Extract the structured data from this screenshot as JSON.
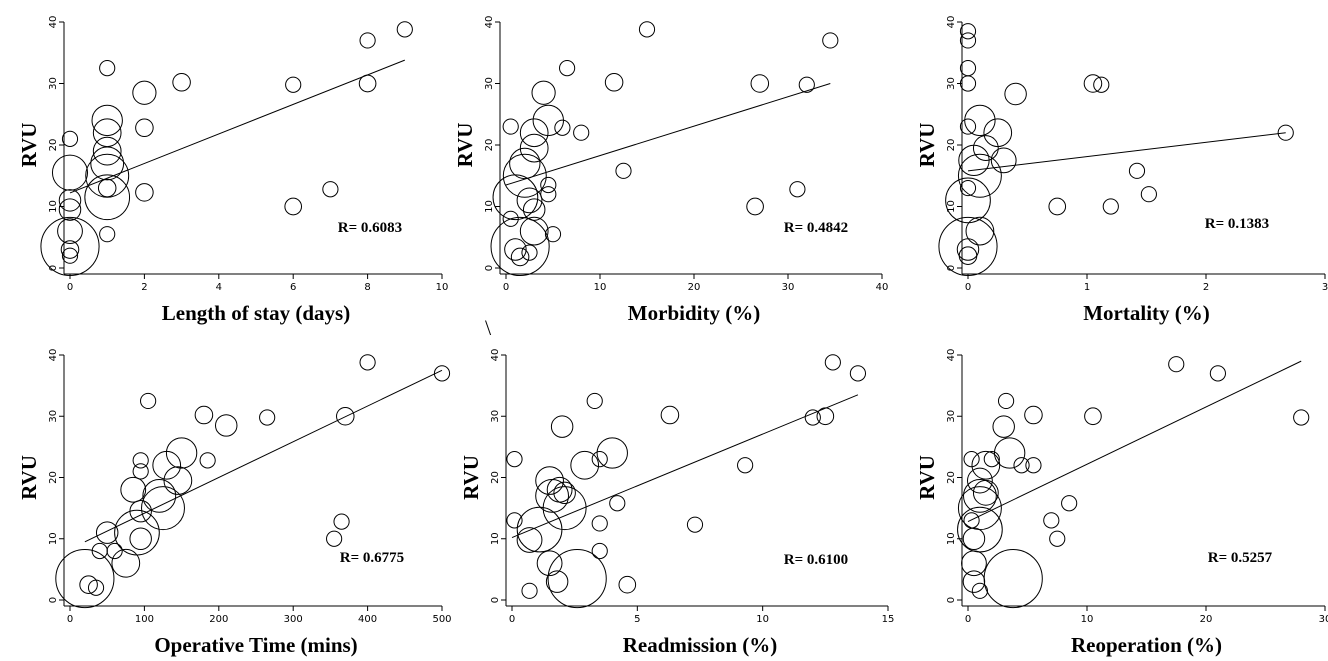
{
  "stray_mark": "\\",
  "chart_data": [
    {
      "type": "scatter",
      "xlabel": "Length of stay (days)",
      "ylabel": "RVU",
      "r_label": "R= 0.6083",
      "xlim": [
        0,
        10
      ],
      "ylim": [
        0,
        40
      ],
      "xticks": [
        0,
        2,
        4,
        6,
        8,
        10
      ],
      "yticks": [
        0,
        10,
        20,
        30,
        40
      ],
      "fit_line": [
        [
          0,
          12.2
        ],
        [
          9,
          33.8
        ]
      ],
      "points": [
        {
          "x": 0,
          "y": 3.5,
          "weight": 22
        },
        {
          "x": 0,
          "y": 15.5,
          "weight": 8
        },
        {
          "x": 0,
          "y": 6,
          "weight": 4
        },
        {
          "x": 0,
          "y": 11,
          "weight": 3
        },
        {
          "x": 0,
          "y": 9.5,
          "weight": 3
        },
        {
          "x": 0,
          "y": 21,
          "weight": 1.5
        },
        {
          "x": 0,
          "y": 3,
          "weight": 2
        },
        {
          "x": 0,
          "y": 2,
          "weight": 1.5
        },
        {
          "x": 1,
          "y": 11.5,
          "weight": 13
        },
        {
          "x": 1,
          "y": 15,
          "weight": 12
        },
        {
          "x": 1,
          "y": 17,
          "weight": 7
        },
        {
          "x": 1,
          "y": 19,
          "weight": 5
        },
        {
          "x": 1,
          "y": 22,
          "weight": 5
        },
        {
          "x": 1,
          "y": 24,
          "weight": 6
        },
        {
          "x": 1,
          "y": 13,
          "weight": 2
        },
        {
          "x": 1,
          "y": 32.5,
          "weight": 1.5
        },
        {
          "x": 1,
          "y": 5.5,
          "weight": 1.5
        },
        {
          "x": 2,
          "y": 28.5,
          "weight": 3.5
        },
        {
          "x": 2,
          "y": 22.8,
          "weight": 2
        },
        {
          "x": 2,
          "y": 12.3,
          "weight": 2
        },
        {
          "x": 3,
          "y": 30.2,
          "weight": 2
        },
        {
          "x": 6,
          "y": 29.8,
          "weight": 1.5
        },
        {
          "x": 6,
          "y": 10,
          "weight": 1.8
        },
        {
          "x": 7,
          "y": 12.8,
          "weight": 1.5
        },
        {
          "x": 8,
          "y": 37,
          "weight": 1.5
        },
        {
          "x": 8,
          "y": 30,
          "weight": 1.8
        },
        {
          "x": 9,
          "y": 38.8,
          "weight": 1.5
        }
      ]
    },
    {
      "type": "scatter",
      "xlabel": "Morbidity (%)",
      "ylabel": "RVU",
      "r_label": "R= 0.4842",
      "xlim": [
        0,
        40
      ],
      "ylim": [
        0,
        40
      ],
      "xticks": [
        0,
        10,
        20,
        30,
        40
      ],
      "yticks": [
        0,
        10,
        20,
        30,
        40
      ],
      "fit_line": [
        [
          0,
          13.5
        ],
        [
          34.5,
          30
        ]
      ],
      "points": [
        {
          "x": 1.5,
          "y": 3.5,
          "weight": 22
        },
        {
          "x": 1,
          "y": 11.5,
          "weight": 13
        },
        {
          "x": 2,
          "y": 15,
          "weight": 12
        },
        {
          "x": 2,
          "y": 17,
          "weight": 6
        },
        {
          "x": 3,
          "y": 19.5,
          "weight": 5
        },
        {
          "x": 3,
          "y": 22,
          "weight": 5
        },
        {
          "x": 4.5,
          "y": 24,
          "weight": 6
        },
        {
          "x": 3,
          "y": 6,
          "weight": 5
        },
        {
          "x": 2.5,
          "y": 11,
          "weight": 4
        },
        {
          "x": 3,
          "y": 9.5,
          "weight": 3
        },
        {
          "x": 1,
          "y": 3,
          "weight": 3
        },
        {
          "x": 1.5,
          "y": 1.8,
          "weight": 2
        },
        {
          "x": 4,
          "y": 28.5,
          "weight": 3.5
        },
        {
          "x": 2.5,
          "y": 2.5,
          "weight": 1.5
        },
        {
          "x": 0.5,
          "y": 23,
          "weight": 1.5
        },
        {
          "x": 0.5,
          "y": 8,
          "weight": 1.5
        },
        {
          "x": 4.5,
          "y": 13.5,
          "weight": 1.5
        },
        {
          "x": 4.5,
          "y": 12,
          "weight": 1.5
        },
        {
          "x": 5,
          "y": 5.5,
          "weight": 1.5
        },
        {
          "x": 6,
          "y": 22.8,
          "weight": 1.5
        },
        {
          "x": 6.5,
          "y": 32.5,
          "weight": 1.5
        },
        {
          "x": 8,
          "y": 22,
          "weight": 1.5
        },
        {
          "x": 11.5,
          "y": 30.2,
          "weight": 2
        },
        {
          "x": 12.5,
          "y": 15.8,
          "weight": 1.5
        },
        {
          "x": 15,
          "y": 38.8,
          "weight": 1.5
        },
        {
          "x": 26.5,
          "y": 10,
          "weight": 1.8
        },
        {
          "x": 27,
          "y": 30,
          "weight": 2
        },
        {
          "x": 31,
          "y": 12.8,
          "weight": 1.5
        },
        {
          "x": 32,
          "y": 29.8,
          "weight": 1.5
        },
        {
          "x": 34.5,
          "y": 37,
          "weight": 1.5
        }
      ]
    },
    {
      "type": "scatter",
      "xlabel": "Mortality (%)",
      "ylabel": "RVU",
      "r_label": "R= 0.1383",
      "xlim": [
        0,
        3
      ],
      "ylim": [
        0,
        40
      ],
      "xticks": [
        0,
        1,
        2,
        3
      ],
      "yticks": [
        0,
        10,
        20,
        30,
        40
      ],
      "fit_line": [
        [
          0,
          15.8
        ],
        [
          2.67,
          22
        ]
      ],
      "points": [
        {
          "x": 0,
          "y": 3.5,
          "weight": 22
        },
        {
          "x": 0,
          "y": 11,
          "weight": 13
        },
        {
          "x": 0.1,
          "y": 15,
          "weight": 12
        },
        {
          "x": 0.05,
          "y": 17.5,
          "weight": 6
        },
        {
          "x": 0.1,
          "y": 24,
          "weight": 6
        },
        {
          "x": 0.25,
          "y": 22,
          "weight": 5
        },
        {
          "x": 0.3,
          "y": 17.5,
          "weight": 4
        },
        {
          "x": 0.1,
          "y": 6,
          "weight": 5
        },
        {
          "x": 0.15,
          "y": 19.5,
          "weight": 4
        },
        {
          "x": 0.4,
          "y": 28.3,
          "weight": 3
        },
        {
          "x": 0,
          "y": 3,
          "weight": 3
        },
        {
          "x": 0,
          "y": 2,
          "weight": 2
        },
        {
          "x": 0,
          "y": 38.5,
          "weight": 1.5
        },
        {
          "x": 0,
          "y": 37,
          "weight": 1.5
        },
        {
          "x": 0,
          "y": 32.5,
          "weight": 1.5
        },
        {
          "x": 0,
          "y": 30,
          "weight": 1.5
        },
        {
          "x": 0,
          "y": 23,
          "weight": 1.5
        },
        {
          "x": 0,
          "y": 13,
          "weight": 1.5
        },
        {
          "x": 0.75,
          "y": 10,
          "weight": 1.8
        },
        {
          "x": 1.05,
          "y": 30,
          "weight": 2
        },
        {
          "x": 1.12,
          "y": 29.8,
          "weight": 1.5
        },
        {
          "x": 1.2,
          "y": 10,
          "weight": 1.5
        },
        {
          "x": 1.42,
          "y": 15.8,
          "weight": 1.5
        },
        {
          "x": 1.52,
          "y": 12,
          "weight": 1.5
        },
        {
          "x": 2.67,
          "y": 22,
          "weight": 1.5
        }
      ]
    },
    {
      "type": "scatter",
      "xlabel": "Operative Time (mins)",
      "ylabel": "RVU",
      "r_label": "R= 0.6775",
      "xlim": [
        0,
        500
      ],
      "ylim": [
        0,
        40
      ],
      "xticks": [
        0,
        100,
        200,
        300,
        400,
        500
      ],
      "yticks": [
        0,
        10,
        20,
        30,
        40
      ],
      "fit_line": [
        [
          20,
          9.5
        ],
        [
          500,
          37.5
        ]
      ],
      "points": [
        {
          "x": 20,
          "y": 3.5,
          "weight": 22
        },
        {
          "x": 90,
          "y": 11,
          "weight": 13
        },
        {
          "x": 125,
          "y": 15,
          "weight": 12
        },
        {
          "x": 120,
          "y": 17,
          "weight": 7
        },
        {
          "x": 130,
          "y": 22,
          "weight": 5
        },
        {
          "x": 150,
          "y": 24,
          "weight": 6
        },
        {
          "x": 145,
          "y": 19.5,
          "weight": 5
        },
        {
          "x": 75,
          "y": 6,
          "weight": 5
        },
        {
          "x": 85,
          "y": 18,
          "weight": 4
        },
        {
          "x": 95,
          "y": 14.5,
          "weight": 3
        },
        {
          "x": 50,
          "y": 11,
          "weight": 3
        },
        {
          "x": 95,
          "y": 10,
          "weight": 3
        },
        {
          "x": 25,
          "y": 2.5,
          "weight": 2
        },
        {
          "x": 35,
          "y": 2,
          "weight": 1.5
        },
        {
          "x": 40,
          "y": 8,
          "weight": 1.5
        },
        {
          "x": 60,
          "y": 8,
          "weight": 1.5
        },
        {
          "x": 95,
          "y": 21,
          "weight": 1.5
        },
        {
          "x": 95,
          "y": 22.8,
          "weight": 1.5
        },
        {
          "x": 105,
          "y": 32.5,
          "weight": 1.5
        },
        {
          "x": 180,
          "y": 30.2,
          "weight": 2
        },
        {
          "x": 185,
          "y": 22.8,
          "weight": 1.5
        },
        {
          "x": 210,
          "y": 28.5,
          "weight": 3
        },
        {
          "x": 265,
          "y": 29.8,
          "weight": 1.5
        },
        {
          "x": 355,
          "y": 10,
          "weight": 1.5
        },
        {
          "x": 365,
          "y": 12.8,
          "weight": 1.5
        },
        {
          "x": 370,
          "y": 30,
          "weight": 2
        },
        {
          "x": 400,
          "y": 38.8,
          "weight": 1.5
        },
        {
          "x": 500,
          "y": 37,
          "weight": 1.5
        }
      ]
    },
    {
      "type": "scatter",
      "xlabel": "Readmission (%)",
      "ylabel": "RVU",
      "r_label": "R= 0.6100",
      "xlim": [
        0,
        15
      ],
      "ylim": [
        0,
        40
      ],
      "xticks": [
        0,
        5,
        10,
        15
      ],
      "yticks": [
        0,
        10,
        20,
        30,
        40
      ],
      "fit_line": [
        [
          0,
          10.2
        ],
        [
          13.8,
          33.5
        ]
      ],
      "points": [
        {
          "x": 2.6,
          "y": 3.5,
          "weight": 22
        },
        {
          "x": 1.1,
          "y": 11.5,
          "weight": 13
        },
        {
          "x": 2.1,
          "y": 15,
          "weight": 12
        },
        {
          "x": 1.6,
          "y": 17,
          "weight": 7
        },
        {
          "x": 2.9,
          "y": 22,
          "weight": 5
        },
        {
          "x": 4,
          "y": 24,
          "weight": 6
        },
        {
          "x": 1.5,
          "y": 19.5,
          "weight": 5
        },
        {
          "x": 1.5,
          "y": 6,
          "weight": 4
        },
        {
          "x": 1.9,
          "y": 18,
          "weight": 4
        },
        {
          "x": 0.7,
          "y": 9.8,
          "weight": 4
        },
        {
          "x": 2.1,
          "y": 17.5,
          "weight": 3
        },
        {
          "x": 1.8,
          "y": 3,
          "weight": 3
        },
        {
          "x": 2,
          "y": 28.3,
          "weight": 3
        },
        {
          "x": 0.1,
          "y": 23,
          "weight": 1.5
        },
        {
          "x": 0.1,
          "y": 13,
          "weight": 1.5
        },
        {
          "x": 0.7,
          "y": 1.5,
          "weight": 1.5
        },
        {
          "x": 3.3,
          "y": 32.5,
          "weight": 1.5
        },
        {
          "x": 3.5,
          "y": 23,
          "weight": 1.5
        },
        {
          "x": 3.5,
          "y": 12.5,
          "weight": 1.5
        },
        {
          "x": 3.5,
          "y": 8,
          "weight": 1.5
        },
        {
          "x": 4.2,
          "y": 15.8,
          "weight": 1.5
        },
        {
          "x": 4.6,
          "y": 2.5,
          "weight": 1.8
        },
        {
          "x": 6.3,
          "y": 30.2,
          "weight": 2
        },
        {
          "x": 7.3,
          "y": 12.3,
          "weight": 1.5
        },
        {
          "x": 9.3,
          "y": 22,
          "weight": 1.5
        },
        {
          "x": 12,
          "y": 29.8,
          "weight": 1.5
        },
        {
          "x": 12.5,
          "y": 30,
          "weight": 1.8
        },
        {
          "x": 12.8,
          "y": 38.8,
          "weight": 1.5
        },
        {
          "x": 13.8,
          "y": 37,
          "weight": 1.5
        }
      ]
    },
    {
      "type": "scatter",
      "xlabel": "Reoperation (%)",
      "ylabel": "RVU",
      "r_label": "R= 0.5257",
      "xlim": [
        0,
        30
      ],
      "ylim": [
        0,
        40
      ],
      "xticks": [
        0,
        10,
        20,
        30
      ],
      "yticks": [
        0,
        10,
        20,
        30,
        40
      ],
      "fit_line": [
        [
          0,
          12.8
        ],
        [
          28,
          39
        ]
      ],
      "points": [
        {
          "x": 3.8,
          "y": 3.5,
          "weight": 22
        },
        {
          "x": 1,
          "y": 11.5,
          "weight": 13
        },
        {
          "x": 1,
          "y": 15,
          "weight": 12
        },
        {
          "x": 1,
          "y": 17,
          "weight": 7
        },
        {
          "x": 1.5,
          "y": 22,
          "weight": 5
        },
        {
          "x": 3.5,
          "y": 24,
          "weight": 6
        },
        {
          "x": 1,
          "y": 19.5,
          "weight": 4
        },
        {
          "x": 0.5,
          "y": 6,
          "weight": 4
        },
        {
          "x": 1.5,
          "y": 17.5,
          "weight": 4
        },
        {
          "x": 0.5,
          "y": 10,
          "weight": 3
        },
        {
          "x": 0.5,
          "y": 3,
          "weight": 3
        },
        {
          "x": 0.3,
          "y": 23,
          "weight": 1.5
        },
        {
          "x": 0.3,
          "y": 13,
          "weight": 1.5
        },
        {
          "x": 1,
          "y": 1.5,
          "weight": 1.5
        },
        {
          "x": 2,
          "y": 23,
          "weight": 1.5
        },
        {
          "x": 3,
          "y": 28.3,
          "weight": 3
        },
        {
          "x": 3.2,
          "y": 32.5,
          "weight": 1.5
        },
        {
          "x": 4.5,
          "y": 22,
          "weight": 1.5
        },
        {
          "x": 5.5,
          "y": 30.2,
          "weight": 2
        },
        {
          "x": 5.5,
          "y": 22,
          "weight": 1.5
        },
        {
          "x": 7,
          "y": 13,
          "weight": 1.5
        },
        {
          "x": 7.5,
          "y": 10,
          "weight": 1.5
        },
        {
          "x": 8.5,
          "y": 15.8,
          "weight": 1.5
        },
        {
          "x": 10.5,
          "y": 30,
          "weight": 1.8
        },
        {
          "x": 17.5,
          "y": 38.5,
          "weight": 1.5
        },
        {
          "x": 21,
          "y": 37,
          "weight": 1.5
        },
        {
          "x": 28,
          "y": 29.8,
          "weight": 1.5
        }
      ]
    }
  ]
}
